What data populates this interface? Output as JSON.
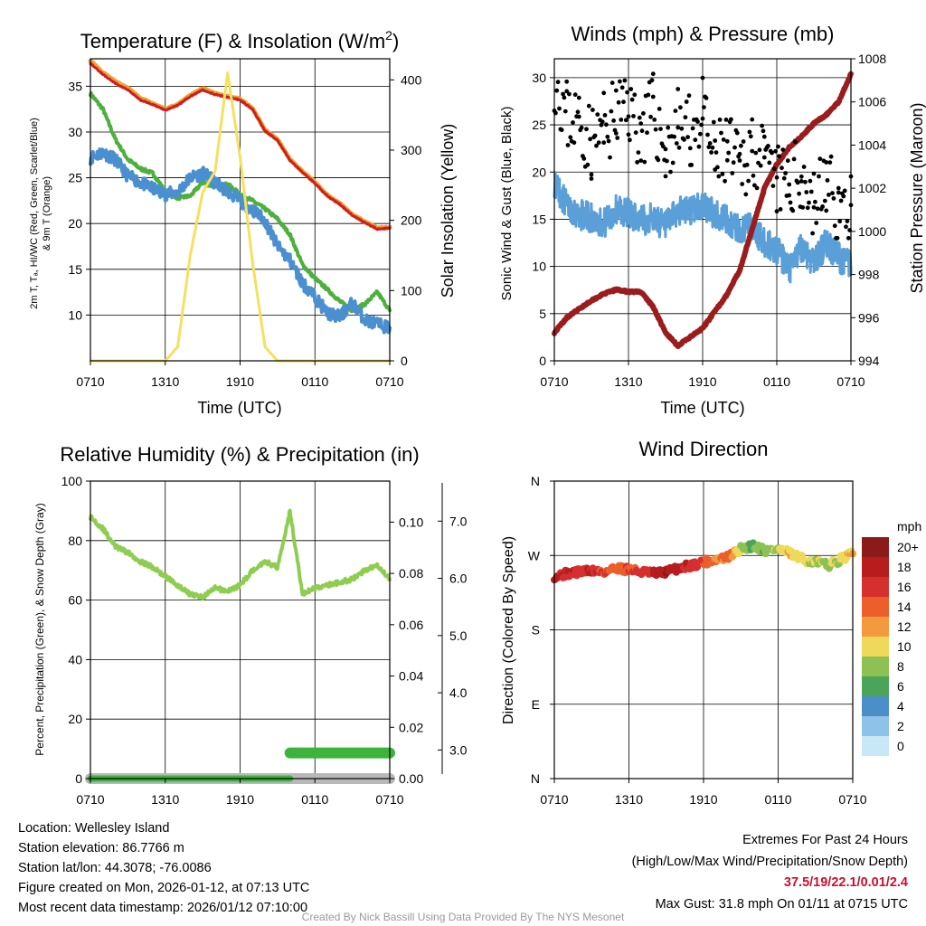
{
  "colors": {
    "red": "#cc1f1f",
    "orange": "#f0a030",
    "green": "#4cb03c",
    "blue": "#4a8fcf",
    "yellow": "#f5e060",
    "black": "#000000",
    "maroon": "#9a1c1c",
    "windblue": "#5a9fd8",
    "rhgreen": "#8fcd50",
    "precipgreen": "#3cb43c",
    "snowgray": "#b8b8b8"
  },
  "time_ticks": [
    "0710",
    "1310",
    "1910",
    "0110",
    "0710"
  ],
  "chart_data": [
    {
      "type": "line",
      "title": "Temperature (F) & Insolation (W/m",
      "title_sup": "2",
      "title_end": ")",
      "xlabel": "Time (UTC)",
      "ylabel_line1": "2m T, Tₐ, HI/WC (Red, Green, Scarlet/Blue)",
      "ylabel_line2": "& 9m T (Orange)",
      "ylabel_right": "Solar Insolation (Yellow)",
      "ylim": [
        5,
        38
      ],
      "yticks": [
        10,
        15,
        20,
        25,
        30,
        35
      ],
      "ylim_right": [
        0,
        430
      ],
      "yticks_right": [
        0,
        100,
        200,
        300,
        400
      ],
      "x": [
        0,
        1,
        2,
        3,
        4,
        5,
        6,
        7,
        8,
        9,
        10,
        11,
        12,
        13,
        14,
        15,
        16,
        17,
        18,
        19,
        20,
        21,
        22,
        23,
        24
      ],
      "series": [
        {
          "name": "9m T",
          "axis": "left",
          "color_key": "orange",
          "width": 5,
          "values": [
            37.8,
            36.5,
            35.5,
            34.8,
            33.7,
            33.1,
            32.5,
            33.0,
            34.0,
            34.8,
            34.2,
            33.9,
            33.6,
            32.6,
            30.2,
            29.2,
            27.0,
            25.7,
            24.5,
            23.1,
            22.2,
            21.0,
            20.2,
            19.5,
            19.6
          ]
        },
        {
          "name": "2m T",
          "axis": "left",
          "color_key": "red",
          "width": 3,
          "values": [
            37.5,
            36.3,
            35.3,
            34.6,
            33.5,
            33.0,
            32.4,
            32.9,
            33.9,
            34.6,
            34.1,
            33.8,
            33.5,
            32.5,
            30.1,
            29.1,
            26.9,
            25.6,
            24.4,
            23.0,
            22.1,
            20.9,
            20.1,
            19.4,
            19.5
          ]
        },
        {
          "name": "Td",
          "axis": "left",
          "color_key": "green",
          "width": 4,
          "values": [
            34.2,
            32.5,
            29.2,
            27.0,
            26.0,
            25.5,
            23.5,
            22.8,
            23.0,
            24.5,
            24.0,
            24.3,
            23.2,
            22.5,
            21.6,
            20.5,
            18.8,
            15.5,
            14.0,
            12.8,
            11.5,
            10.5,
            11.2,
            12.5,
            10.5
          ]
        },
        {
          "name": "HI/WC",
          "axis": "left",
          "color_key": "blue",
          "width": 4,
          "values": [
            27.2,
            27.8,
            27.0,
            25.2,
            24.5,
            23.8,
            23.2,
            23.4,
            25.0,
            25.5,
            24.5,
            23.5,
            22.5,
            21.5,
            20.3,
            17.5,
            16.0,
            13.5,
            12.0,
            10.2,
            9.8,
            11.3,
            9.5,
            9.0,
            8.6
          ]
        },
        {
          "name": "Solar Insolation",
          "axis": "right",
          "color_key": "yellow",
          "width": 3,
          "values": [
            0,
            0,
            0,
            0,
            0,
            0,
            0,
            20,
            150,
            240,
            270,
            410,
            290,
            140,
            20,
            0,
            0,
            0,
            0,
            0,
            0,
            0,
            0,
            0,
            0
          ]
        }
      ]
    },
    {
      "type": "line",
      "title": "Winds (mph) & Pressure (mb)",
      "xlabel": "Time (UTC)",
      "ylabel": "Sonic Wind & Gust (Blue, Black)",
      "ylabel_right": "Station Pressure (Maroon)",
      "ylim": [
        0,
        32
      ],
      "yticks": [
        0,
        5,
        10,
        15,
        20,
        25,
        30
      ],
      "ylim_right": [
        994,
        1008
      ],
      "yticks_right": [
        994,
        996,
        998,
        1000,
        1002,
        1004,
        1006,
        1008
      ],
      "x": [
        0,
        1,
        2,
        3,
        4,
        5,
        6,
        7,
        8,
        9,
        10,
        11,
        12,
        13,
        14,
        15,
        16,
        17,
        18,
        19,
        20,
        21,
        22,
        23,
        24
      ],
      "series": [
        {
          "name": "Wind",
          "axis": "left",
          "color_key": "windblue",
          "width": 3,
          "values": [
            19,
            16.5,
            15.5,
            15.2,
            14.5,
            16.0,
            15.8,
            14.8,
            15.2,
            14.2,
            15.8,
            16.0,
            16.5,
            15.5,
            14.8,
            13.8,
            14.2,
            12.5,
            11.8,
            9.5,
            12.0,
            10.5,
            12.5,
            11.0,
            10.0
          ]
        },
        {
          "name": "Gust",
          "axis": "left",
          "color_key": "black",
          "style": "scatter",
          "values": [
            30.5,
            26,
            25.5,
            23,
            24.5,
            26,
            27,
            24,
            26.5,
            22,
            25,
            24,
            26,
            21,
            22.5,
            20,
            23,
            20.5,
            19,
            18.5,
            20,
            16.5,
            19,
            16,
            16.5
          ]
        },
        {
          "name": "Station Pressure",
          "axis": "right",
          "color_key": "maroon",
          "width": 6,
          "values": [
            995.3,
            996.0,
            996.4,
            996.8,
            997.1,
            997.3,
            997.2,
            997.2,
            996.5,
            995.3,
            994.7,
            995.1,
            995.5,
            996.3,
            997.1,
            998.2,
            1000.1,
            1002.0,
            1003.1,
            1003.9,
            1004.4,
            1005.0,
            1005.4,
            1006.0,
            1007.3
          ]
        }
      ]
    },
    {
      "type": "line",
      "title": "Relative Humidity (%) & Precipitation (in)",
      "xlabel": "",
      "ylabel": "Percent, Precipitation (Green), & Snow Depth (Gray)",
      "ylim": [
        0,
        100
      ],
      "yticks": [
        0,
        20,
        40,
        60,
        80,
        100
      ],
      "ylim_precip": [
        0,
        0.116
      ],
      "yticks_precip": [
        "0.00",
        "0.02",
        "0.04",
        "0.06",
        "0.08",
        "0.10"
      ],
      "ylim_snow": [
        2.5,
        7.7
      ],
      "yticks_snow": [
        "3.0",
        "4.0",
        "5.0",
        "6.0",
        "7.0"
      ],
      "x": [
        0,
        1,
        2,
        3,
        4,
        5,
        6,
        7,
        8,
        9,
        10,
        11,
        12,
        13,
        14,
        15,
        16,
        17,
        18,
        19,
        20,
        21,
        22,
        23,
        24
      ],
      "series": [
        {
          "name": "Relative Humidity",
          "axis": "left",
          "color_key": "rhgreen",
          "width": 4,
          "values": [
            88,
            84,
            78,
            76,
            73,
            71,
            68,
            65,
            62,
            61,
            64,
            63,
            65,
            70,
            73,
            71,
            90,
            62,
            64,
            65,
            66,
            67,
            70,
            72,
            67
          ]
        },
        {
          "name": "Snow Depth",
          "axis": "snow",
          "color_key": "snowgray",
          "width": 12,
          "x": [
            0,
            24
          ],
          "values": [
            2.5,
            2.5
          ]
        },
        {
          "name": "Precipitation",
          "axis": "precip",
          "color_key": "precipgreen",
          "width": 12,
          "x": [
            0,
            16,
            16,
            24
          ],
          "values": [
            0.0,
            0.0,
            0.01,
            0.01
          ]
        }
      ]
    },
    {
      "type": "scatter",
      "title": "Wind Direction",
      "ylabel": "Direction (Colored By Speed)",
      "ylim": [
        0,
        360
      ],
      "yticks": [
        "N",
        "E",
        "S",
        "W",
        "N"
      ],
      "colorbar_unit": "mph",
      "colorbar_labels": [
        "20+",
        "18",
        "16",
        "14",
        "12",
        "10",
        "8",
        "6",
        "4",
        "2",
        "0"
      ],
      "colorbar_colors": [
        "#8b1a1a",
        "#b81c1c",
        "#d62f2f",
        "#ec5f2a",
        "#f49a3e",
        "#eed95a",
        "#8dc153",
        "#4ba45a",
        "#4a8fc8",
        "#8ec2e8",
        "#c9e7f6"
      ],
      "x": [
        0,
        1,
        2,
        3,
        4,
        5,
        6,
        7,
        8,
        9,
        10,
        11,
        12,
        13,
        14,
        15,
        16,
        17,
        18,
        19,
        20,
        21,
        22,
        23,
        24
      ],
      "values": [
        245,
        248,
        250,
        252,
        250,
        255,
        253,
        250,
        248,
        250,
        255,
        258,
        262,
        265,
        268,
        278,
        282,
        276,
        278,
        272,
        265,
        262,
        258,
        265,
        272
      ],
      "speeds": [
        18,
        17,
        16,
        17,
        15,
        14,
        15,
        16,
        17,
        19,
        18,
        16,
        15,
        13,
        14,
        9,
        6,
        8,
        9,
        11,
        10,
        9,
        8,
        10,
        11
      ]
    }
  ],
  "footer": {
    "location": "Location: Wellesley Island",
    "elevation": "Station elevation: 86.7766 m",
    "latlon": "Station lat/lon: 44.3078; -76.0086",
    "created": "Figure created on Mon, 2026-01-12, at 07:13 UTC",
    "recent": "Most recent data timestamp: 2026/01/12 07:10:00",
    "extremes_title": "Extremes For Past 24 Hours",
    "extremes_legend": "(High/Low/Max Wind/Precipitation/Snow Depth)",
    "extremes_values": "37.5/19/22.1/0.01/2.4",
    "max_gust": "Max Gust: 31.8 mph On 01/11 at 0715 UTC",
    "credit": "Created By Nick Bassill Using Data Provided By The NYS Mesonet"
  }
}
